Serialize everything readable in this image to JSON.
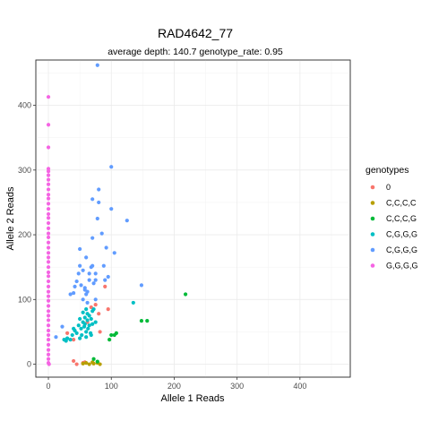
{
  "chart_data": {
    "type": "scatter",
    "title": "RAD4642_77",
    "subtitle": "average depth:  140.7  genotype_rate:  0.95",
    "xlabel": "Allele 1 Reads",
    "ylabel": "Allele 2 Reads",
    "xlim": [
      -20,
      480
    ],
    "ylim": [
      -20,
      470
    ],
    "xticks": [
      0,
      100,
      200,
      300,
      400
    ],
    "yticks": [
      0,
      100,
      200,
      300,
      400
    ],
    "grid": true,
    "legend": {
      "title": "genotypes",
      "position": "right"
    },
    "series": [
      {
        "name": "0",
        "color": "#F8766D",
        "points": [
          [
            30,
            48
          ],
          [
            40,
            5
          ],
          [
            55,
            2
          ],
          [
            62,
            65
          ],
          [
            68,
            88
          ],
          [
            75,
            92
          ],
          [
            80,
            78
          ],
          [
            82,
            50
          ],
          [
            95,
            85
          ],
          [
            90,
            120
          ],
          [
            40,
            38
          ],
          [
            58,
            3
          ],
          [
            45,
            0
          ]
        ]
      },
      {
        "name": "C,C,C,C",
        "color": "#B79F00",
        "points": [
          [
            55,
            1
          ],
          [
            60,
            2
          ],
          [
            65,
            0
          ],
          [
            70,
            3
          ],
          [
            78,
            2
          ],
          [
            82,
            0
          ],
          [
            72,
            1
          ]
        ]
      },
      {
        "name": "C,C,C,G",
        "color": "#00BA38",
        "points": [
          [
            72,
            8
          ],
          [
            78,
            4
          ],
          [
            97,
            38
          ],
          [
            100,
            45
          ],
          [
            105,
            45
          ],
          [
            108,
            48
          ],
          [
            148,
            67
          ],
          [
            157,
            67
          ],
          [
            218,
            108
          ]
        ]
      },
      {
        "name": "C,G,G,G",
        "color": "#00BFC4",
        "points": [
          [
            25,
            38
          ],
          [
            28,
            36
          ],
          [
            30,
            40
          ],
          [
            35,
            38
          ],
          [
            38,
            45
          ],
          [
            40,
            55
          ],
          [
            42,
            52
          ],
          [
            45,
            48
          ],
          [
            48,
            60
          ],
          [
            50,
            40
          ],
          [
            50,
            70
          ],
          [
            52,
            55
          ],
          [
            53,
            45
          ],
          [
            55,
            65
          ],
          [
            55,
            80
          ],
          [
            57,
            58
          ],
          [
            58,
            62
          ],
          [
            58,
            72
          ],
          [
            60,
            50
          ],
          [
            60,
            85
          ],
          [
            62,
            68
          ],
          [
            63,
            55
          ],
          [
            65,
            60
          ],
          [
            65,
            75
          ],
          [
            67,
            48
          ],
          [
            68,
            70
          ],
          [
            70,
            62
          ],
          [
            70,
            82
          ],
          [
            72,
            85
          ],
          [
            60,
            42
          ],
          [
            68,
            45
          ],
          [
            75,
            65
          ],
          [
            62,
            78
          ],
          [
            135,
            95
          ]
        ]
      },
      {
        "name": "C,G,G,G",
        "color": "#619CFF",
        "points": [
          [
            12,
            42
          ],
          [
            22,
            58
          ],
          [
            35,
            108
          ],
          [
            40,
            110
          ],
          [
            42,
            120
          ],
          [
            45,
            128
          ],
          [
            48,
            140
          ],
          [
            50,
            152
          ],
          [
            50,
            178
          ],
          [
            52,
            122
          ],
          [
            55,
            100
          ],
          [
            55,
            145
          ],
          [
            58,
            118
          ],
          [
            60,
            108
          ],
          [
            60,
            165
          ],
          [
            62,
            112
          ],
          [
            65,
            130
          ],
          [
            65,
            140
          ],
          [
            68,
            150
          ],
          [
            70,
            152
          ],
          [
            70,
            195
          ],
          [
            70,
            255
          ],
          [
            72,
            125
          ],
          [
            75,
            100
          ],
          [
            75,
            130
          ],
          [
            75,
            140
          ],
          [
            78,
            225
          ],
          [
            80,
            250
          ],
          [
            80,
            270
          ],
          [
            85,
            202
          ],
          [
            88,
            152
          ],
          [
            90,
            130
          ],
          [
            92,
            180
          ],
          [
            95,
            135
          ],
          [
            100,
            240
          ],
          [
            100,
            305
          ],
          [
            105,
            172
          ],
          [
            125,
            222
          ],
          [
            148,
            122
          ],
          [
            78,
            462
          ],
          [
            58,
            115
          ],
          [
            62,
            95
          ]
        ]
      },
      {
        "name": "G,G,G,G",
        "color": "#F564E3",
        "points": [
          [
            0,
            413
          ],
          [
            0,
            370
          ],
          [
            0,
            335
          ],
          [
            0,
            302
          ],
          [
            0,
            298
          ],
          [
            0,
            292
          ],
          [
            0,
            285
          ],
          [
            0,
            278
          ],
          [
            0,
            270
          ],
          [
            0,
            262
          ],
          [
            0,
            256
          ],
          [
            0,
            248
          ],
          [
            0,
            240
          ],
          [
            0,
            232
          ],
          [
            0,
            226
          ],
          [
            0,
            218
          ],
          [
            0,
            210
          ],
          [
            0,
            202
          ],
          [
            0,
            196
          ],
          [
            0,
            188
          ],
          [
            0,
            180
          ],
          [
            0,
            172
          ],
          [
            0,
            165
          ],
          [
            0,
            158
          ],
          [
            0,
            150
          ],
          [
            0,
            142
          ],
          [
            0,
            136
          ],
          [
            0,
            128
          ],
          [
            0,
            120
          ],
          [
            0,
            112
          ],
          [
            0,
            105
          ],
          [
            0,
            98
          ],
          [
            0,
            90
          ],
          [
            0,
            82
          ],
          [
            0,
            75
          ],
          [
            0,
            68
          ],
          [
            0,
            60
          ],
          [
            0,
            52
          ],
          [
            0,
            45
          ],
          [
            0,
            38
          ],
          [
            0,
            30
          ],
          [
            0,
            22
          ],
          [
            0,
            15
          ],
          [
            0,
            8
          ],
          [
            0,
            2
          ],
          [
            1,
            0
          ]
        ]
      }
    ]
  }
}
